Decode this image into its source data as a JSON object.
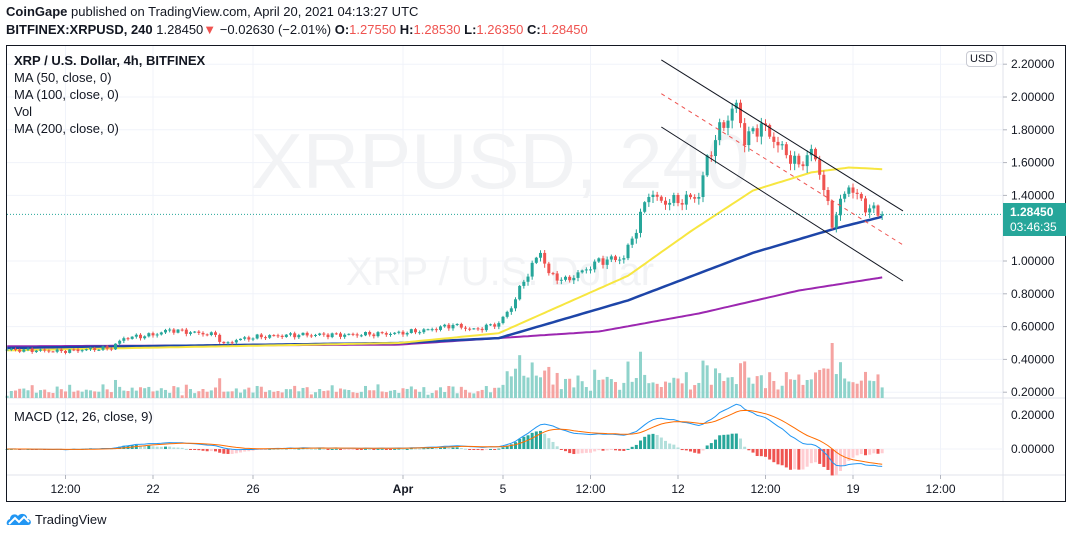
{
  "header": {
    "publisher": "CoinGape",
    "published_text": "published on TradingView.com, April 20, 2021 04:13:27 UTC",
    "symbol": "BITFINEX:XRPUSD, 240",
    "last": "1.28450",
    "change": "−0.02630 (−2.01%)",
    "o_label": "O:",
    "o": "1.27550",
    "h_label": "H:",
    "h": "1.28530",
    "l_label": "L:",
    "l": "1.26350",
    "c_label": "C:",
    "c": "1.28450"
  },
  "legend": {
    "title": "XRP / U.S. Dollar, 4h, BITFINEX",
    "ma50": "MA (50, close, 0)",
    "ma100": "MA (100, close, 0)",
    "vol": "Vol",
    "ma200": "MA (200, close, 0)",
    "macd": "MACD (12, 26, close, 9)"
  },
  "watermark": {
    "symbol": "XRPUSD, 240",
    "name": "XRP / U.S. Dollar"
  },
  "currency_badge": "USD",
  "price_tag": {
    "price": "1.28450",
    "countdown": "03:46:35"
  },
  "footer": {
    "brand": "TradingView"
  },
  "colors": {
    "up": "#26a69a",
    "down": "#ef5350",
    "vol_up": "#8fd3cb",
    "vol_down": "#f5a3a1",
    "ma50": "#f7e640",
    "ma100": "#1d45a8",
    "ma200": "#9c27b0",
    "macd": "#2196f3",
    "signal": "#ff6d00",
    "channel": "#131722",
    "channel_mid": "#ef5350"
  },
  "chart_data": {
    "type": "candlestick",
    "title": "XRP / U.S. Dollar, 4h, BITFINEX",
    "interval_hours": 4,
    "start": "2021-03-16T04:00",
    "end": "2021-04-20T04:00",
    "close_keyframes": [
      [
        "2021-03-16T04:00",
        0.46
      ],
      [
        "2021-03-18T08:00",
        0.45
      ],
      [
        "2021-03-20T08:00",
        0.47
      ],
      [
        "2021-03-20T20:00",
        0.53
      ],
      [
        "2021-03-22T00:00",
        0.55
      ],
      [
        "2021-03-22T16:00",
        0.58
      ],
      [
        "2021-03-23T20:00",
        0.56
      ],
      [
        "2021-03-24T12:00",
        0.55
      ],
      [
        "2021-03-24T20:00",
        0.49
      ],
      [
        "2021-03-25T08:00",
        0.52
      ],
      [
        "2021-03-26T08:00",
        0.54
      ],
      [
        "2021-03-27T20:00",
        0.55
      ],
      [
        "2021-03-29T20:00",
        0.55
      ],
      [
        "2021-03-31T20:00",
        0.56
      ],
      [
        "2021-04-02T00:00",
        0.58
      ],
      [
        "2021-04-03T00:00",
        0.61
      ],
      [
        "2021-04-03T20:00",
        0.58
      ],
      [
        "2021-04-04T20:00",
        0.62
      ],
      [
        "2021-04-05T08:00",
        0.72
      ],
      [
        "2021-04-05T20:00",
        0.88
      ],
      [
        "2021-04-06T12:00",
        1.06
      ],
      [
        "2021-04-06T20:00",
        0.92
      ],
      [
        "2021-04-07T12:00",
        0.88
      ],
      [
        "2021-04-08T08:00",
        0.95
      ],
      [
        "2021-04-08T20:00",
        1.0
      ],
      [
        "2021-04-09T20:00",
        1.02
      ],
      [
        "2021-04-10T08:00",
        1.2
      ],
      [
        "2021-04-10T20:00",
        1.42
      ],
      [
        "2021-04-11T08:00",
        1.36
      ],
      [
        "2021-04-12T04:00",
        1.37
      ],
      [
        "2021-04-12T20:00",
        1.4
      ],
      [
        "2021-04-13T04:00",
        1.62
      ],
      [
        "2021-04-13T16:00",
        1.8
      ],
      [
        "2021-04-14T08:00",
        1.95
      ],
      [
        "2021-04-14T16:00",
        1.74
      ],
      [
        "2021-04-15T08:00",
        1.83
      ],
      [
        "2021-04-16T04:00",
        1.68
      ],
      [
        "2021-04-16T20:00",
        1.58
      ],
      [
        "2021-04-17T08:00",
        1.67
      ],
      [
        "2021-04-17T16:00",
        1.55
      ],
      [
        "2021-04-18T04:00",
        1.22
      ],
      [
        "2021-04-18T08:00",
        1.3
      ],
      [
        "2021-04-18T20:00",
        1.46
      ],
      [
        "2021-04-19T12:00",
        1.33
      ],
      [
        "2021-04-20T04:00",
        1.2845
      ]
    ],
    "ma50": [
      [
        "2021-03-16T04:00",
        0.455
      ],
      [
        "2021-03-31T20:00",
        0.5
      ],
      [
        "2021-04-04T20:00",
        0.56
      ],
      [
        "2021-04-10T00:00",
        0.91
      ],
      [
        "2021-04-12T12:00",
        1.18
      ],
      [
        "2021-04-15T00:00",
        1.43
      ],
      [
        "2021-04-17T08:00",
        1.54
      ],
      [
        "2021-04-18T20:00",
        1.57
      ],
      [
        "2021-04-20T04:00",
        1.56
      ]
    ],
    "ma100": [
      [
        "2021-03-16T04:00",
        0.47
      ],
      [
        "2021-03-31T20:00",
        0.5
      ],
      [
        "2021-04-04T20:00",
        0.53
      ],
      [
        "2021-04-10T00:00",
        0.76
      ],
      [
        "2021-04-15T00:00",
        1.05
      ],
      [
        "2021-04-18T08:00",
        1.2
      ],
      [
        "2021-04-20T04:00",
        1.27
      ]
    ],
    "ma200": [
      [
        "2021-03-16T04:00",
        0.48
      ],
      [
        "2021-03-31T20:00",
        0.49
      ],
      [
        "2021-04-08T20:00",
        0.57
      ],
      [
        "2021-04-12T20:00",
        0.68
      ],
      [
        "2021-04-16T20:00",
        0.82
      ],
      [
        "2021-04-20T04:00",
        0.9
      ]
    ],
    "channel": {
      "upper": [
        [
          "2021-04-11T08:00",
          2.226
        ],
        [
          "2021-04-21T00:00",
          1.305
        ]
      ],
      "middle": [
        [
          "2021-04-11T08:00",
          2.02
        ],
        [
          "2021-04-21T00:00",
          1.098
        ]
      ],
      "lower": [
        [
          "2021-04-11T08:00",
          1.817
        ],
        [
          "2021-04-21T00:00",
          0.878
        ]
      ]
    },
    "price_axis": {
      "ticks": [
        2.2,
        2.0,
        1.8,
        1.6,
        1.4,
        1.0,
        0.8,
        0.6,
        0.4,
        0.2
      ],
      "labels": [
        "2.20000",
        "2.00000",
        "1.80000",
        "1.60000",
        "1.40000",
        "1.00000",
        "0.80000",
        "0.60000",
        "0.40000",
        "0.20000"
      ],
      "range": [
        0.2,
        2.3
      ]
    },
    "macd_axis": {
      "ticks": [
        0.2,
        0.0
      ],
      "labels": [
        "0.20000",
        "0.00000"
      ]
    },
    "time_axis": {
      "ticks": [
        "2021-03-18T12:00",
        "2021-03-22T00:00",
        "2021-03-26T00:00",
        "2021-04-01T00:00",
        "2021-04-05T00:00",
        "2021-04-08T12:00",
        "2021-04-12T00:00",
        "2021-04-15T12:00",
        "2021-04-19T00:00",
        "2021-04-22T12:00"
      ],
      "labels": [
        "12:00",
        "22",
        "26",
        "Apr",
        "5",
        "12:00",
        "12",
        "12:00",
        "19",
        "12:00"
      ]
    },
    "last_price": 1.2845
  }
}
